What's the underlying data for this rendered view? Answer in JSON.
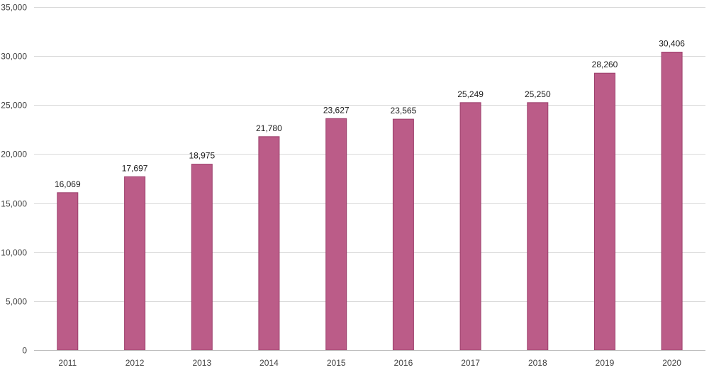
{
  "chart_data": {
    "type": "bar",
    "title": "",
    "xlabel": "",
    "ylabel": "",
    "categories": [
      "2011",
      "2012",
      "2013",
      "2014",
      "2015",
      "2016",
      "2017",
      "2018",
      "2019",
      "2020"
    ],
    "values": [
      16069,
      17697,
      18975,
      21780,
      23627,
      23565,
      25249,
      25250,
      28260,
      30406
    ],
    "value_labels": [
      "16,069",
      "17,697",
      "18,975",
      "21,780",
      "23,627",
      "23,565",
      "25,249",
      "25,250",
      "28,260",
      "30,406"
    ],
    "ylim": [
      0,
      35000
    ],
    "yticks": [
      0,
      5000,
      10000,
      15000,
      20000,
      25000,
      30000,
      35000
    ],
    "ytick_labels": [
      "0",
      "5,000",
      "10,000",
      "15,000",
      "20,000",
      "25,000",
      "30,000",
      "35,000"
    ],
    "grid": true,
    "legend": "none",
    "bar_color": "#bb5c88",
    "bar_border_color": "#9c3f6c"
  }
}
